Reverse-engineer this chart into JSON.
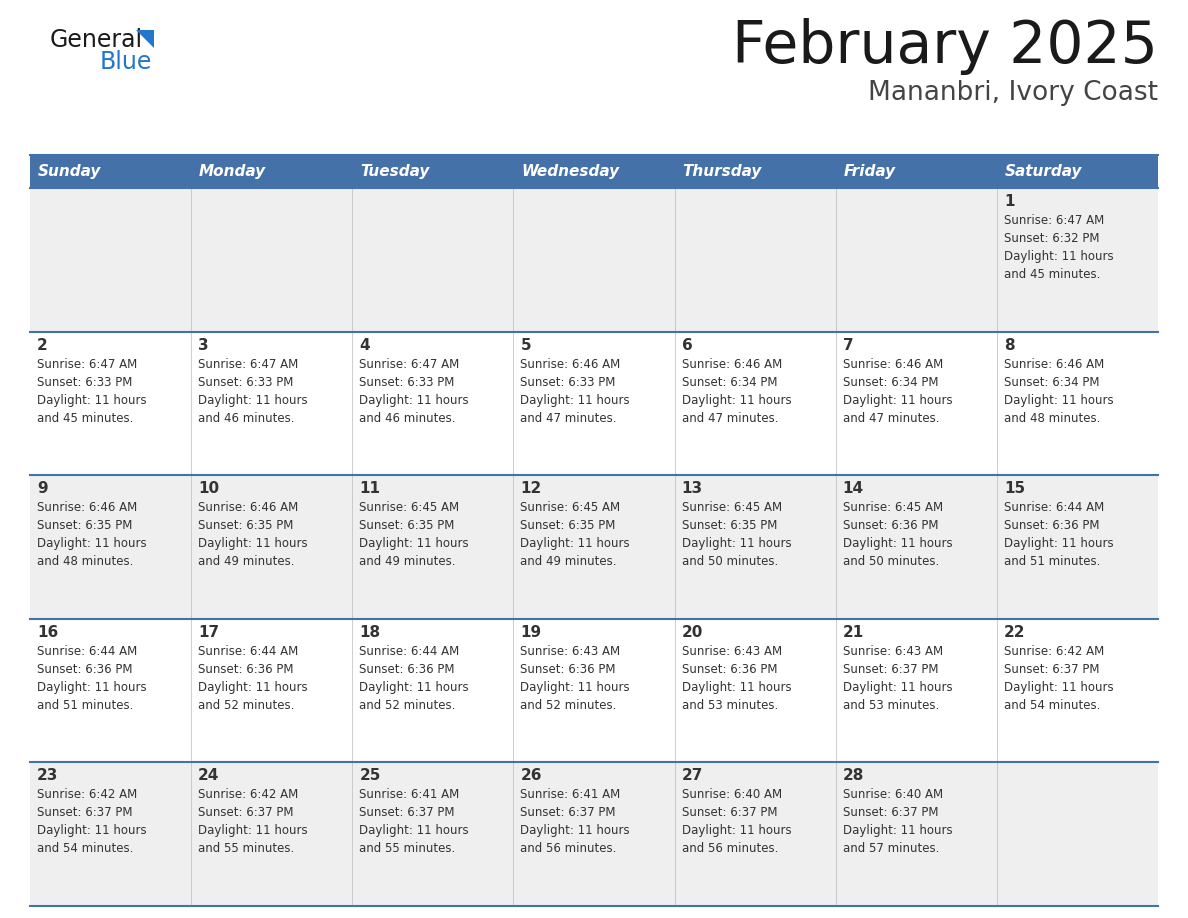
{
  "title": "February 2025",
  "subtitle": "Mananbri, Ivory Coast",
  "header_bg": "#4472A8",
  "header_text_color": "#FFFFFF",
  "day_names": [
    "Sunday",
    "Monday",
    "Tuesday",
    "Wednesday",
    "Thursday",
    "Friday",
    "Saturday"
  ],
  "row_bg_odd": "#EFEFEF",
  "row_bg_even": "#FFFFFF",
  "cell_border_color": "#4472A8",
  "day_number_color": "#333333",
  "info_text_color": "#333333",
  "calendar_data": [
    [
      null,
      null,
      null,
      null,
      null,
      null,
      {
        "day": "1",
        "sunrise": "6:47 AM",
        "sunset": "6:32 PM",
        "daylight": "11 hours\nand 45 minutes."
      }
    ],
    [
      {
        "day": "2",
        "sunrise": "6:47 AM",
        "sunset": "6:33 PM",
        "daylight": "11 hours\nand 45 minutes."
      },
      {
        "day": "3",
        "sunrise": "6:47 AM",
        "sunset": "6:33 PM",
        "daylight": "11 hours\nand 46 minutes."
      },
      {
        "day": "4",
        "sunrise": "6:47 AM",
        "sunset": "6:33 PM",
        "daylight": "11 hours\nand 46 minutes."
      },
      {
        "day": "5",
        "sunrise": "6:46 AM",
        "sunset": "6:33 PM",
        "daylight": "11 hours\nand 47 minutes."
      },
      {
        "day": "6",
        "sunrise": "6:46 AM",
        "sunset": "6:34 PM",
        "daylight": "11 hours\nand 47 minutes."
      },
      {
        "day": "7",
        "sunrise": "6:46 AM",
        "sunset": "6:34 PM",
        "daylight": "11 hours\nand 47 minutes."
      },
      {
        "day": "8",
        "sunrise": "6:46 AM",
        "sunset": "6:34 PM",
        "daylight": "11 hours\nand 48 minutes."
      }
    ],
    [
      {
        "day": "9",
        "sunrise": "6:46 AM",
        "sunset": "6:35 PM",
        "daylight": "11 hours\nand 48 minutes."
      },
      {
        "day": "10",
        "sunrise": "6:46 AM",
        "sunset": "6:35 PM",
        "daylight": "11 hours\nand 49 minutes."
      },
      {
        "day": "11",
        "sunrise": "6:45 AM",
        "sunset": "6:35 PM",
        "daylight": "11 hours\nand 49 minutes."
      },
      {
        "day": "12",
        "sunrise": "6:45 AM",
        "sunset": "6:35 PM",
        "daylight": "11 hours\nand 49 minutes."
      },
      {
        "day": "13",
        "sunrise": "6:45 AM",
        "sunset": "6:35 PM",
        "daylight": "11 hours\nand 50 minutes."
      },
      {
        "day": "14",
        "sunrise": "6:45 AM",
        "sunset": "6:36 PM",
        "daylight": "11 hours\nand 50 minutes."
      },
      {
        "day": "15",
        "sunrise": "6:44 AM",
        "sunset": "6:36 PM",
        "daylight": "11 hours\nand 51 minutes."
      }
    ],
    [
      {
        "day": "16",
        "sunrise": "6:44 AM",
        "sunset": "6:36 PM",
        "daylight": "11 hours\nand 51 minutes."
      },
      {
        "day": "17",
        "sunrise": "6:44 AM",
        "sunset": "6:36 PM",
        "daylight": "11 hours\nand 52 minutes."
      },
      {
        "day": "18",
        "sunrise": "6:44 AM",
        "sunset": "6:36 PM",
        "daylight": "11 hours\nand 52 minutes."
      },
      {
        "day": "19",
        "sunrise": "6:43 AM",
        "sunset": "6:36 PM",
        "daylight": "11 hours\nand 52 minutes."
      },
      {
        "day": "20",
        "sunrise": "6:43 AM",
        "sunset": "6:36 PM",
        "daylight": "11 hours\nand 53 minutes."
      },
      {
        "day": "21",
        "sunrise": "6:43 AM",
        "sunset": "6:37 PM",
        "daylight": "11 hours\nand 53 minutes."
      },
      {
        "day": "22",
        "sunrise": "6:42 AM",
        "sunset": "6:37 PM",
        "daylight": "11 hours\nand 54 minutes."
      }
    ],
    [
      {
        "day": "23",
        "sunrise": "6:42 AM",
        "sunset": "6:37 PM",
        "daylight": "11 hours\nand 54 minutes."
      },
      {
        "day": "24",
        "sunrise": "6:42 AM",
        "sunset": "6:37 PM",
        "daylight": "11 hours\nand 55 minutes."
      },
      {
        "day": "25",
        "sunrise": "6:41 AM",
        "sunset": "6:37 PM",
        "daylight": "11 hours\nand 55 minutes."
      },
      {
        "day": "26",
        "sunrise": "6:41 AM",
        "sunset": "6:37 PM",
        "daylight": "11 hours\nand 56 minutes."
      },
      {
        "day": "27",
        "sunrise": "6:40 AM",
        "sunset": "6:37 PM",
        "daylight": "11 hours\nand 56 minutes."
      },
      {
        "day": "28",
        "sunrise": "6:40 AM",
        "sunset": "6:37 PM",
        "daylight": "11 hours\nand 57 minutes."
      },
      null
    ]
  ],
  "logo_general_color": "#1a1a1a",
  "logo_blue_color": "#2277CC",
  "logo_triangle_color": "#2277CC"
}
